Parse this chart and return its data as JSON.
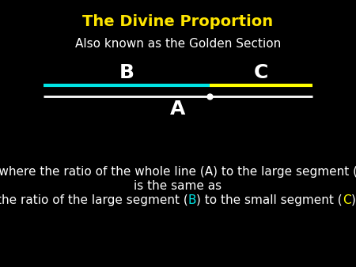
{
  "title": "The Divine Proportion",
  "title_color": "#FFE600",
  "subtitle": "Also known as the Golden Section",
  "subtitle_color": "#FFFFFF",
  "background_color": "#000000",
  "line_A_color": "#FFFFFF",
  "line_B_color": "#00E5E5",
  "line_C_color": "#FFFF00",
  "label_A": "A",
  "label_B": "B",
  "label_C": "C",
  "label_color": "#FFFFFF",
  "dot_color": "#FFFFFF",
  "phi": 1.6180339887,
  "colored_B": "#00E5E5",
  "colored_C": "#FFFF00",
  "desc_color": "#FFFFFF",
  "desc_fontsize": 11,
  "title_fontsize": 14,
  "subtitle_fontsize": 11,
  "label_fontsize": 18,
  "fig_width": 4.5,
  "fig_height": 3.38,
  "fig_dpi": 100
}
